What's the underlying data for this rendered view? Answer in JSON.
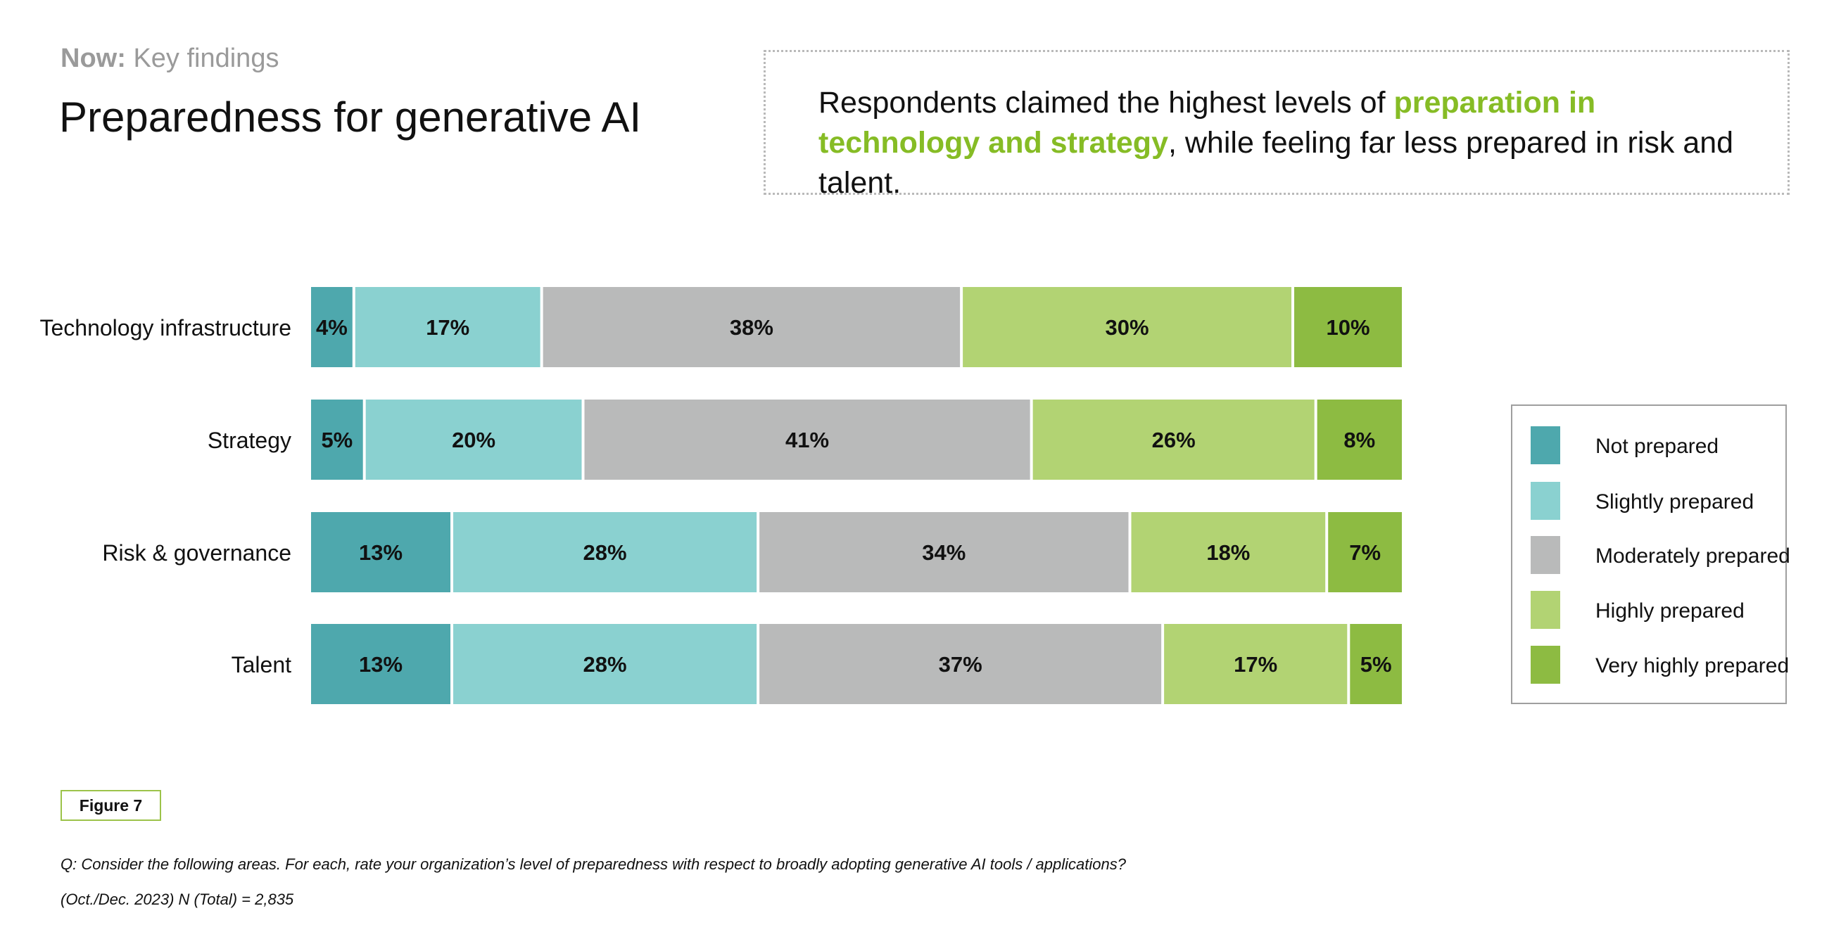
{
  "header": {
    "eyebrow_bold": "Now:",
    "eyebrow_text": "Key findings",
    "title": "Preparedness for generative AI"
  },
  "callout": {
    "text_before": "Respondents claimed the highest levels of ",
    "text_highlight": "preparation in technology and strategy",
    "text_after": ", while feeling far less prepared in risk and talent."
  },
  "chart_data": {
    "type": "bar",
    "orientation": "horizontal",
    "stacked": true,
    "title": "",
    "xlabel": "",
    "ylabel": "",
    "categories": [
      "Technology infrastructure",
      "Strategy",
      "Risk & governance",
      "Talent"
    ],
    "series": [
      {
        "name": "Not prepared",
        "color": "#4ea8ad",
        "values": [
          4,
          5,
          13,
          13
        ]
      },
      {
        "name": "Slightly prepared",
        "color": "#8ad1d0",
        "values": [
          17,
          20,
          28,
          28
        ]
      },
      {
        "name": "Moderately prepared",
        "color": "#b9baba",
        "values": [
          38,
          41,
          34,
          37
        ]
      },
      {
        "name": "Highly prepared",
        "color": "#b2d373",
        "values": [
          30,
          26,
          18,
          17
        ]
      },
      {
        "name": "Very highly prepared",
        "color": "#8dbb42",
        "values": [
          10,
          8,
          7,
          5
        ]
      }
    ],
    "value_suffix": "%",
    "legend_position": "right",
    "grid": false
  },
  "footer": {
    "figure_label": "Figure 7",
    "question": "Q: Consider the following areas. For each, rate your organization’s level of preparedness with respect to broadly adopting generative AI tools / applications?",
    "source": "(Oct./Dec. 2023) N (Total) = 2,835"
  }
}
